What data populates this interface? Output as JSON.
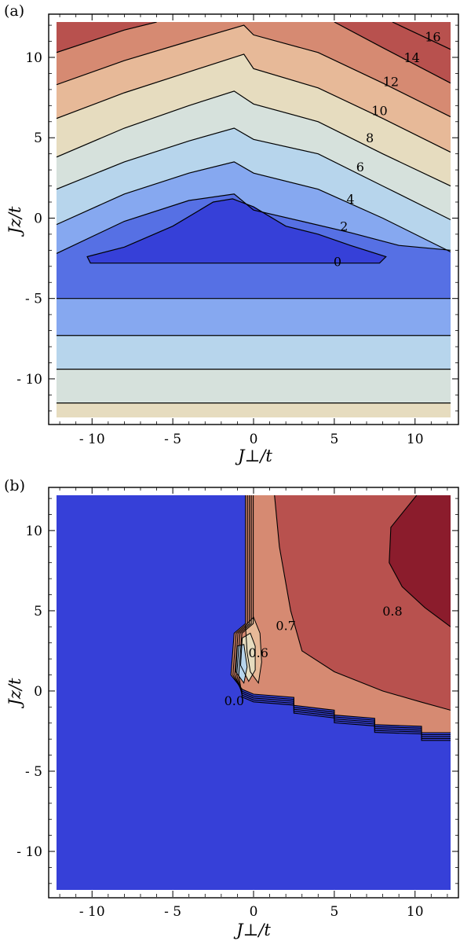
{
  "colors": {
    "c0": "#3640d8",
    "c1": "#5670e4",
    "c2": "#86a8f0",
    "c3": "#b7d5ec",
    "c4": "#d6e1dc",
    "c5": "#e6dcbf",
    "c6": "#e7b998",
    "c7": "#d68a72",
    "c8": "#b8514e",
    "c9": "#8b1c2c",
    "line": "#000000"
  },
  "chart_data": [
    {
      "panel": "(a)",
      "type": "contour",
      "xlabel": "J⊥/t",
      "ylabel": "Jz/t",
      "xlim": [
        -12.2,
        12.2
      ],
      "ylim": [
        -12.4,
        12.2
      ],
      "xticks": [
        -10,
        -5,
        0,
        5,
        10
      ],
      "xtick_labels": [
        "- 10",
        "- 5",
        "0",
        "5",
        "10"
      ],
      "yticks": [
        -10,
        -5,
        0,
        5,
        10
      ],
      "ytick_labels": [
        "- 10",
        "- 5",
        "0",
        "5",
        "10"
      ],
      "contour_labels": [
        {
          "text": "0",
          "x": 5.2,
          "y": -2.7
        },
        {
          "text": "2",
          "x": 5.6,
          "y": -0.5
        },
        {
          "text": "4",
          "x": 6.0,
          "y": 1.2
        },
        {
          "text": "6",
          "x": 6.6,
          "y": 3.2
        },
        {
          "text": "8",
          "x": 7.2,
          "y": 5.0
        },
        {
          "text": "10",
          "x": 7.8,
          "y": 6.7
        },
        {
          "text": "12",
          "x": 8.5,
          "y": 8.5
        },
        {
          "text": "14",
          "x": 9.8,
          "y": 10.0
        },
        {
          "text": "16",
          "x": 11.1,
          "y": 11.3
        }
      ],
      "lower_boundaries_y": [
        -5.0,
        -7.3,
        -9.4,
        -11.5
      ],
      "upper_contours": [
        {
          "level": 2,
          "points": [
            [
              -12.2,
              -2.2
            ],
            [
              -8,
              -0.2
            ],
            [
              -4,
              1.1
            ],
            [
              -1.2,
              1.5
            ],
            [
              0,
              0.5
            ],
            [
              3,
              -0.2
            ],
            [
              6,
              -0.9
            ],
            [
              9,
              -1.7
            ],
            [
              12.2,
              -2.0
            ]
          ]
        },
        {
          "level": 4,
          "points": [
            [
              -12.2,
              -0.4
            ],
            [
              -8,
              1.5
            ],
            [
              -4,
              2.8
            ],
            [
              -1.2,
              3.5
            ],
            [
              0,
              2.8
            ],
            [
              4,
              1.8
            ],
            [
              8,
              0.0
            ],
            [
              12.2,
              -2.1
            ]
          ]
        },
        {
          "level": 6,
          "points": [
            [
              -12.2,
              1.8
            ],
            [
              -8,
              3.5
            ],
            [
              -4,
              4.8
            ],
            [
              -1.2,
              5.6
            ],
            [
              0,
              4.9
            ],
            [
              4,
              4.0
            ],
            [
              8,
              2.0
            ],
            [
              12.2,
              -0.1
            ]
          ]
        },
        {
          "level": 8,
          "points": [
            [
              -12.2,
              3.8
            ],
            [
              -8,
              5.6
            ],
            [
              -4,
              7.0
            ],
            [
              -1.2,
              7.9
            ],
            [
              0,
              7.1
            ],
            [
              4,
              6.0
            ],
            [
              8,
              4.0
            ],
            [
              12.2,
              2.0
            ]
          ]
        },
        {
          "level": 10,
          "points": [
            [
              -12.2,
              6.2
            ],
            [
              -8,
              7.8
            ],
            [
              -4,
              9.1
            ],
            [
              -0.6,
              10.2
            ],
            [
              0,
              9.3
            ],
            [
              4,
              8.1
            ],
            [
              8,
              6.2
            ],
            [
              12.2,
              4.1
            ]
          ]
        },
        {
          "level": 12,
          "points": [
            [
              -12.2,
              8.3
            ],
            [
              -8,
              9.8
            ],
            [
              -4,
              11.0
            ],
            [
              -0.6,
              12.0
            ],
            [
              0,
              11.4
            ],
            [
              4,
              10.3
            ],
            [
              8,
              8.4
            ],
            [
              12.2,
              6.3
            ]
          ]
        },
        {
          "level": 14,
          "points": [
            [
              -12.2,
              10.3
            ],
            [
              -8,
              11.7
            ],
            [
              -6,
              12.2
            ]
          ]
        },
        {
          "level": 14,
          "points": [
            [
              5,
              12.2
            ],
            [
              8,
              10.6
            ],
            [
              12.2,
              8.4
            ]
          ]
        },
        {
          "level": 16,
          "points": [
            [
              -12.2,
              12.2
            ]
          ]
        },
        {
          "level": 16,
          "points": [
            [
              8.6,
              12.2
            ],
            [
              12.2,
              10.5
            ]
          ]
        }
      ],
      "zero_region": [
        [
          -10.3,
          -2.4
        ],
        [
          -8,
          -1.8
        ],
        [
          -5,
          -0.5
        ],
        [
          -2.5,
          1.0
        ],
        [
          -1.3,
          1.2
        ],
        [
          0,
          0.7
        ],
        [
          2,
          -0.5
        ],
        [
          4,
          -1.0
        ],
        [
          6,
          -1.7
        ],
        [
          8.2,
          -2.4
        ],
        [
          7.8,
          -2.8
        ],
        [
          -10.1,
          -2.8
        ]
      ]
    },
    {
      "panel": "(b)",
      "type": "contour",
      "xlabel": "J⊥/t",
      "ylabel": "Jz/t",
      "xlim": [
        -12.2,
        12.2
      ],
      "ylim": [
        -12.4,
        12.2
      ],
      "xticks": [
        -10,
        -5,
        0,
        5,
        10
      ],
      "xtick_labels": [
        "- 10",
        "- 5",
        "0",
        "5",
        "10"
      ],
      "yticks": [
        -10,
        -5,
        0,
        5,
        10
      ],
      "ytick_labels": [
        "- 10",
        "- 5",
        "0",
        "5",
        "10"
      ],
      "contour_labels": [
        {
          "text": "0.0",
          "x": -1.2,
          "y": -0.6
        },
        {
          "text": "0.6",
          "x": 0.3,
          "y": 2.4
        },
        {
          "text": "0.7",
          "x": 2.0,
          "y": 4.1
        },
        {
          "text": "0.8",
          "x": 8.6,
          "y": 5.0
        }
      ],
      "staircase_boundary": [
        [
          -0.5,
          12.2
        ],
        [
          -0.5,
          4.2
        ],
        [
          -1.2,
          3.6
        ],
        [
          -1.4,
          1.0
        ],
        [
          -0.7,
          0.1
        ],
        [
          0,
          -0.2
        ],
        [
          2.5,
          -0.4
        ],
        [
          2.5,
          -0.9
        ],
        [
          5,
          -1.2
        ],
        [
          5,
          -1.5
        ],
        [
          7.5,
          -1.7
        ],
        [
          7.5,
          -2.1
        ],
        [
          10.4,
          -2.2
        ],
        [
          10.4,
          -2.6
        ],
        [
          12.2,
          -2.6
        ]
      ]
    }
  ]
}
